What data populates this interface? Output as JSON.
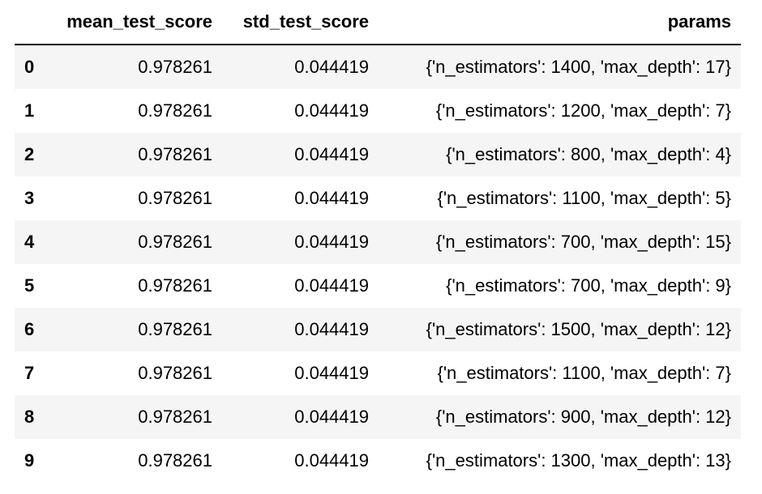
{
  "table": {
    "index_header": "",
    "columns": [
      "mean_test_score",
      "std_test_score",
      "params"
    ],
    "rows": [
      {
        "index": "0",
        "mean_test_score": "0.978261",
        "std_test_score": "0.044419",
        "params": "{'n_estimators': 1400, 'max_depth': 17}"
      },
      {
        "index": "1",
        "mean_test_score": "0.978261",
        "std_test_score": "0.044419",
        "params": "{'n_estimators': 1200, 'max_depth': 7}"
      },
      {
        "index": "2",
        "mean_test_score": "0.978261",
        "std_test_score": "0.044419",
        "params": "{'n_estimators': 800, 'max_depth': 4}"
      },
      {
        "index": "3",
        "mean_test_score": "0.978261",
        "std_test_score": "0.044419",
        "params": "{'n_estimators': 1100, 'max_depth': 5}"
      },
      {
        "index": "4",
        "mean_test_score": "0.978261",
        "std_test_score": "0.044419",
        "params": "{'n_estimators': 700, 'max_depth': 15}"
      },
      {
        "index": "5",
        "mean_test_score": "0.978261",
        "std_test_score": "0.044419",
        "params": "{'n_estimators': 700, 'max_depth': 9}"
      },
      {
        "index": "6",
        "mean_test_score": "0.978261",
        "std_test_score": "0.044419",
        "params": "{'n_estimators': 1500, 'max_depth': 12}"
      },
      {
        "index": "7",
        "mean_test_score": "0.978261",
        "std_test_score": "0.044419",
        "params": "{'n_estimators': 1100, 'max_depth': 7}"
      },
      {
        "index": "8",
        "mean_test_score": "0.978261",
        "std_test_score": "0.044419",
        "params": "{'n_estimators': 900, 'max_depth': 12}"
      },
      {
        "index": "9",
        "mean_test_score": "0.978261",
        "std_test_score": "0.044419",
        "params": "{'n_estimators': 1300, 'max_depth': 13}"
      }
    ]
  },
  "colors": {
    "text": "#000000",
    "stripe": "#f5f5f5",
    "background": "#ffffff",
    "header_rule": "#000000"
  }
}
